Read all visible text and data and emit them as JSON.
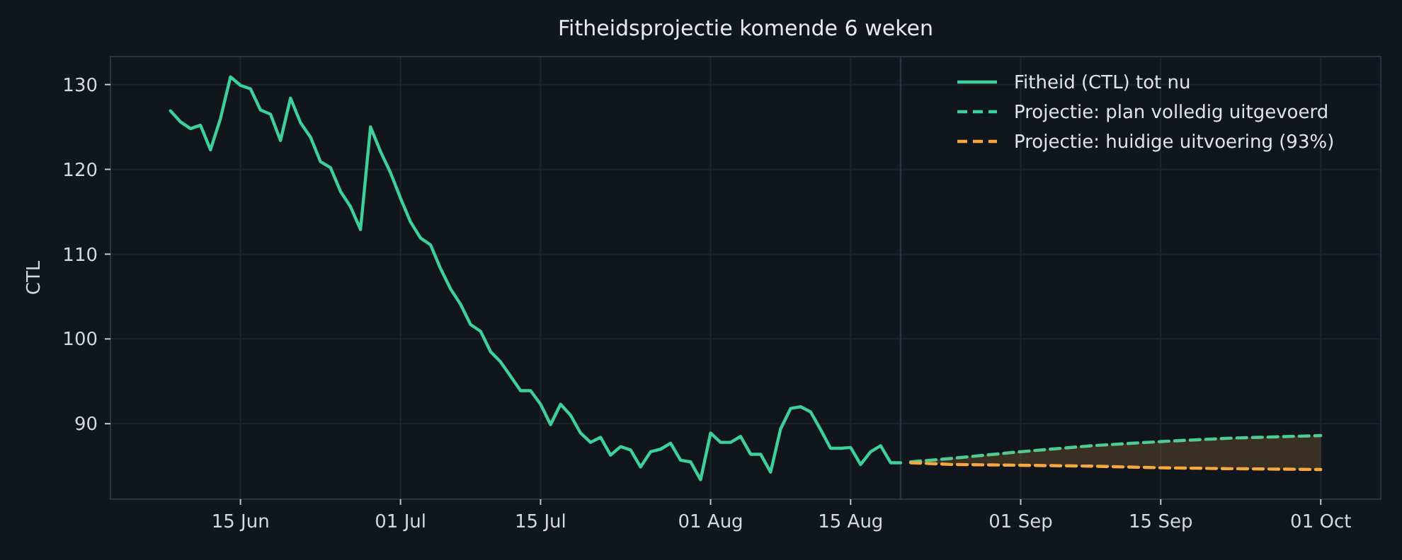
{
  "chart_data": {
    "type": "line",
    "title": "Fitheidsprojectie komende 6 weken",
    "ylabel": "CTL",
    "xlim": [
      "--06-02",
      "--10-07"
    ],
    "xticks": [
      {
        "value": "--06-15",
        "label": "15 Jun"
      },
      {
        "value": "--07-01",
        "label": "01 Jul"
      },
      {
        "value": "--07-15",
        "label": "15 Jul"
      },
      {
        "value": "--08-01",
        "label": "01 Aug"
      },
      {
        "value": "--08-15",
        "label": "15 Aug"
      },
      {
        "value": "--09-01",
        "label": "01 Sep"
      },
      {
        "value": "--09-15",
        "label": "15 Sep"
      },
      {
        "value": "--10-01",
        "label": "01 Oct"
      }
    ],
    "ylim": [
      81.1,
      133.3
    ],
    "yticks": [
      90,
      100,
      110,
      120,
      130
    ],
    "grid": true,
    "legend": "top right",
    "ref_lines": [
      {
        "axis": "x",
        "value": "--08-20",
        "color": "#2c3340"
      }
    ],
    "series": [
      {
        "name": "Fitheid (CTL) tot nu",
        "color": "#3ecf9a",
        "line_style": "solid",
        "x": [
          "--06-08",
          "--06-09",
          "--06-10",
          "--06-11",
          "--06-12",
          "--06-13",
          "--06-14",
          "--06-15",
          "--06-16",
          "--06-17",
          "--06-18",
          "--06-19",
          "--06-20",
          "--06-21",
          "--06-22",
          "--06-23",
          "--06-24",
          "--06-25",
          "--06-26",
          "--06-27",
          "--06-28",
          "--06-29",
          "--06-30",
          "--07-01",
          "--07-02",
          "--07-03",
          "--07-04",
          "--07-05",
          "--07-06",
          "--07-07",
          "--07-08",
          "--07-09",
          "--07-10",
          "--07-11",
          "--07-12",
          "--07-13",
          "--07-14",
          "--07-15",
          "--07-16",
          "--07-17",
          "--07-18",
          "--07-19",
          "--07-20",
          "--07-21",
          "--07-22",
          "--07-23",
          "--07-24",
          "--07-25",
          "--07-26",
          "--07-27",
          "--07-28",
          "--07-29",
          "--07-30",
          "--07-31",
          "--08-01",
          "--08-02",
          "--08-03",
          "--08-04",
          "--08-05",
          "--08-06",
          "--08-07",
          "--08-08",
          "--08-09",
          "--08-10",
          "--08-11",
          "--08-12",
          "--08-13",
          "--08-14",
          "--08-15",
          "--08-16",
          "--08-17",
          "--08-18",
          "--08-19",
          "--08-20"
        ],
        "values": [
          126.9,
          125.6,
          124.8,
          125.2,
          122.3,
          126.0,
          130.9,
          129.9,
          129.5,
          127.0,
          126.5,
          123.4,
          128.4,
          125.5,
          123.8,
          120.9,
          120.2,
          117.4,
          115.6,
          112.9,
          125.0,
          122.1,
          119.6,
          116.6,
          113.8,
          111.9,
          111.1,
          108.3,
          105.9,
          104.1,
          101.7,
          100.9,
          98.5,
          97.3,
          95.6,
          93.9,
          93.9,
          92.3,
          89.9,
          92.3,
          91.0,
          88.9,
          87.8,
          88.4,
          86.3,
          87.3,
          86.9,
          84.9,
          86.7,
          87.0,
          87.7,
          85.7,
          85.5,
          83.4,
          88.9,
          87.8,
          87.8,
          88.5,
          86.4,
          86.4,
          84.3,
          89.4,
          91.8,
          92.0,
          91.4,
          89.3,
          87.1,
          87.1,
          87.2,
          85.2,
          86.7,
          87.4,
          85.4,
          85.4
        ]
      },
      {
        "name": "Projectie: plan volledig uitgevoerd",
        "color": "#3ecf9a",
        "line_style": "dashed",
        "x": [
          "--08-21",
          "--08-25",
          "--09-01",
          "--09-08",
          "--09-15",
          "--09-22",
          "--10-01"
        ],
        "values": [
          85.5,
          85.9,
          86.7,
          87.4,
          87.9,
          88.3,
          88.6
        ]
      },
      {
        "name": "Projectie: huidige uitvoering (93%)",
        "color": "#f5a742",
        "line_style": "dashed",
        "x": [
          "--08-21",
          "--08-25",
          "--09-01",
          "--09-08",
          "--09-15",
          "--09-22",
          "--10-01"
        ],
        "values": [
          85.4,
          85.2,
          85.1,
          85.0,
          84.8,
          84.7,
          84.6
        ],
        "lower": [
          85.4,
          85.2,
          85.1,
          85.0,
          84.8,
          84.7,
          84.6
        ],
        "upper": [
          85.5,
          85.9,
          86.7,
          87.4,
          87.9,
          88.3,
          88.6
        ]
      }
    ]
  }
}
